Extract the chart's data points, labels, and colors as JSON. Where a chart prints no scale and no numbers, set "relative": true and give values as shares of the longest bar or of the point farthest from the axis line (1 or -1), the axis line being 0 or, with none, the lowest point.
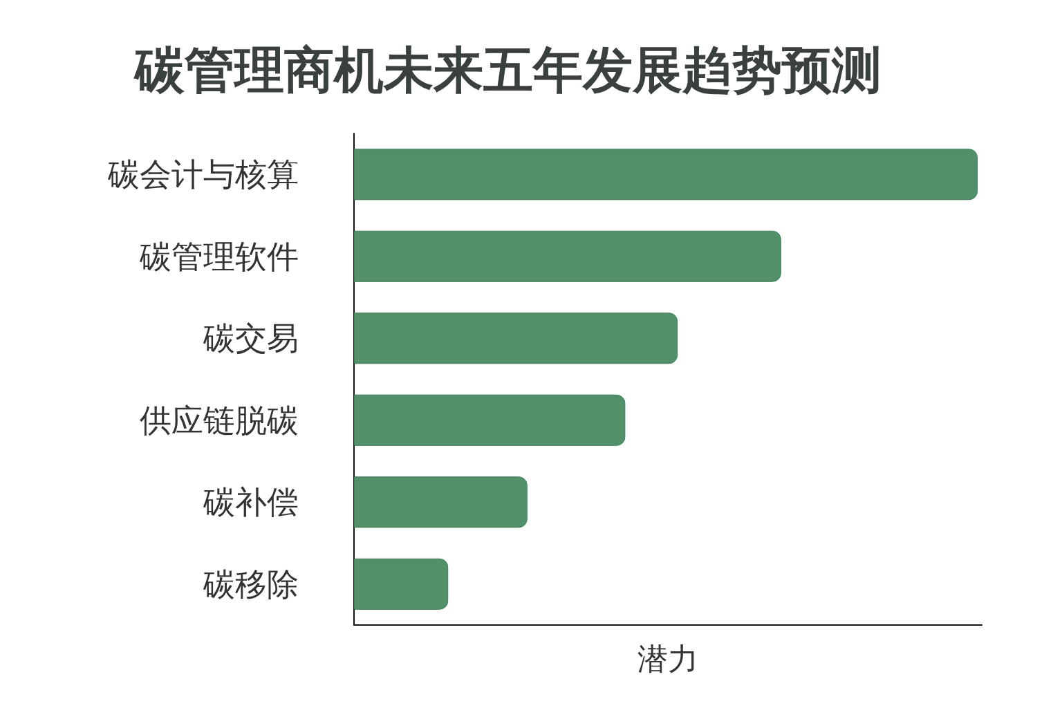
{
  "chart_data": {
    "type": "bar",
    "orientation": "horizontal",
    "relative": true,
    "title": "碳管理商机未来五年发展趋势预测",
    "xlabel": "潜力",
    "categories": [
      "碳会计与核算",
      "碳管理软件",
      "碳交易",
      "供应链脱碳",
      "碳补偿",
      "碳移除"
    ],
    "values": [
      1,
      0.685,
      0.519,
      0.435,
      0.278,
      0.151
    ],
    "color": "#52906a"
  }
}
